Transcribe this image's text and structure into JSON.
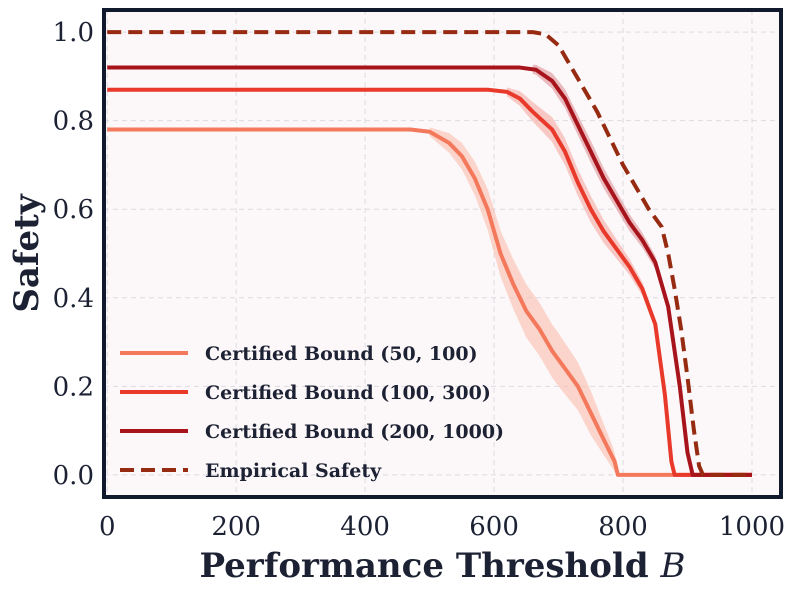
{
  "chart_data": {
    "type": "line",
    "xlabel": "Performance Threshold",
    "xlabel_symbol": "B",
    "ylabel": "Safety",
    "xlim": [
      0,
      1000
    ],
    "ylim": [
      0,
      1.0
    ],
    "x_ticks": [
      "0",
      "200",
      "400",
      "600",
      "800",
      "1000"
    ],
    "y_ticks": [
      "0.0",
      "0.2",
      "0.4",
      "0.6",
      "0.8",
      "1.0"
    ],
    "grid": true,
    "legend_position": "lower-left",
    "series": [
      {
        "name": "Certified Bound (50, 100)",
        "color": "#f4785b",
        "band_color": "#f9b9a6",
        "dashed": false,
        "points": [
          [
            0,
            0.78
          ],
          [
            470,
            0.78
          ],
          [
            500,
            0.775
          ],
          [
            530,
            0.75
          ],
          [
            550,
            0.72
          ],
          [
            570,
            0.67
          ],
          [
            590,
            0.6
          ],
          [
            610,
            0.5
          ],
          [
            630,
            0.43
          ],
          [
            650,
            0.37
          ],
          [
            670,
            0.33
          ],
          [
            690,
            0.28
          ],
          [
            710,
            0.24
          ],
          [
            730,
            0.2
          ],
          [
            750,
            0.14
          ],
          [
            770,
            0.08
          ],
          [
            787,
            0.03
          ],
          [
            792,
            0.0
          ],
          [
            1000,
            0.0
          ]
        ],
        "band": [
          [
            500,
            0.01,
            0.01
          ],
          [
            550,
            0.03,
            0.03
          ],
          [
            600,
            0.05,
            0.05
          ],
          [
            650,
            0.06,
            0.06
          ],
          [
            700,
            0.06,
            0.06
          ],
          [
            750,
            0.05,
            0.05
          ],
          [
            790,
            0.02,
            0.02
          ]
        ]
      },
      {
        "name": "Certified Bound (100, 300)",
        "color": "#e8392b",
        "band_color": "#f4a39b",
        "dashed": false,
        "points": [
          [
            0,
            0.87
          ],
          [
            590,
            0.87
          ],
          [
            620,
            0.865
          ],
          [
            640,
            0.85
          ],
          [
            660,
            0.82
          ],
          [
            690,
            0.78
          ],
          [
            710,
            0.73
          ],
          [
            730,
            0.66
          ],
          [
            750,
            0.6
          ],
          [
            770,
            0.55
          ],
          [
            790,
            0.51
          ],
          [
            810,
            0.47
          ],
          [
            830,
            0.42
          ],
          [
            850,
            0.34
          ],
          [
            865,
            0.18
          ],
          [
            875,
            0.03
          ],
          [
            880,
            0.0
          ],
          [
            1000,
            0.0
          ]
        ],
        "band": [
          [
            620,
            0.01,
            0.01
          ],
          [
            650,
            0.02,
            0.02
          ],
          [
            700,
            0.03,
            0.03
          ],
          [
            750,
            0.03,
            0.03
          ],
          [
            800,
            0.02,
            0.02
          ],
          [
            860,
            0.01,
            0.01
          ]
        ]
      },
      {
        "name": "Certified Bound (200, 1000)",
        "color": "#a8141c",
        "band_color": "#d98a8f",
        "dashed": false,
        "points": [
          [
            0,
            0.92
          ],
          [
            640,
            0.92
          ],
          [
            665,
            0.915
          ],
          [
            690,
            0.89
          ],
          [
            710,
            0.85
          ],
          [
            730,
            0.79
          ],
          [
            750,
            0.73
          ],
          [
            770,
            0.67
          ],
          [
            790,
            0.62
          ],
          [
            810,
            0.57
          ],
          [
            830,
            0.53
          ],
          [
            850,
            0.48
          ],
          [
            870,
            0.38
          ],
          [
            888,
            0.2
          ],
          [
            900,
            0.05
          ],
          [
            908,
            0.0
          ],
          [
            1000,
            0.0
          ]
        ],
        "band": [
          [
            660,
            0.01,
            0.01
          ],
          [
            700,
            0.02,
            0.02
          ],
          [
            750,
            0.025,
            0.025
          ],
          [
            800,
            0.02,
            0.02
          ],
          [
            850,
            0.015,
            0.015
          ],
          [
            900,
            0.01,
            0.01
          ]
        ]
      },
      {
        "name": "Empirical Safety",
        "color": "#962b12",
        "dashed": true,
        "points": [
          [
            0,
            1.0
          ],
          [
            660,
            1.0
          ],
          [
            680,
            0.995
          ],
          [
            700,
            0.97
          ],
          [
            720,
            0.92
          ],
          [
            740,
            0.87
          ],
          [
            760,
            0.82
          ],
          [
            780,
            0.76
          ],
          [
            800,
            0.7
          ],
          [
            820,
            0.65
          ],
          [
            840,
            0.6
          ],
          [
            860,
            0.56
          ],
          [
            870,
            0.5
          ],
          [
            880,
            0.42
          ],
          [
            890,
            0.33
          ],
          [
            900,
            0.22
          ],
          [
            910,
            0.1
          ],
          [
            918,
            0.02
          ],
          [
            924,
            0.0
          ],
          [
            1000,
            0.0
          ]
        ]
      }
    ]
  }
}
